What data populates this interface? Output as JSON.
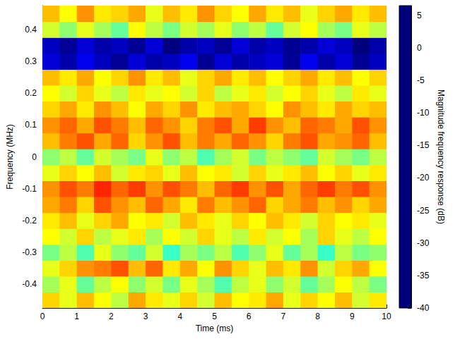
{
  "chart_data": {
    "type": "heatmap",
    "xlabel": "Time (ms)",
    "ylabel": "Frequency (MHz)",
    "colorbar_label": "Magnitude frequency response (dB)",
    "xlim": [
      0,
      10
    ],
    "xticks": [
      0,
      1,
      2,
      3,
      4,
      5,
      6,
      7,
      8,
      9,
      10
    ],
    "ylim": [
      -0.475,
      0.475
    ],
    "yticks": [
      -0.4,
      -0.3,
      -0.2,
      -0.1,
      0,
      0.1,
      0.2,
      0.3,
      0.4
    ],
    "clim": [
      -40,
      6.5
    ],
    "cticks": [
      -40,
      -35,
      -30,
      -25,
      -20,
      -15,
      -10,
      -5,
      0,
      5
    ],
    "x": [
      0.25,
      0.75,
      1.25,
      1.75,
      2.25,
      2.75,
      3.25,
      3.75,
      4.25,
      4.75,
      5.25,
      5.75,
      6.25,
      6.75,
      7.25,
      7.75,
      8.25,
      8.75,
      9.25,
      9.75
    ],
    "y": [
      -0.45,
      -0.4,
      -0.35,
      -0.3,
      -0.25,
      -0.2,
      -0.15,
      -0.1,
      -0.05,
      0,
      0.05,
      0.1,
      0.15,
      0.2,
      0.25,
      0.3,
      0.35,
      0.4,
      0.45
    ],
    "values": [
      [
        -9,
        -12,
        -8,
        -11,
        -14,
        -7,
        -10,
        -12,
        -9,
        -13,
        -8,
        -11,
        -10,
        -7,
        -12,
        -9,
        -11,
        -8,
        -13,
        -10
      ],
      [
        -15,
        -12,
        -18,
        -14,
        -11,
        -16,
        -13,
        -17,
        -12,
        -15,
        -19,
        -14,
        -12,
        -16,
        -13,
        -18,
        -15,
        -11,
        -14,
        -17
      ],
      [
        -12,
        -9,
        -6,
        -5,
        -3,
        -8,
        -4,
        -10,
        -7,
        -11,
        -6,
        -9,
        -12,
        -8,
        -10,
        -6,
        -13,
        -9,
        -7,
        -11
      ],
      [
        -17,
        -14,
        -19,
        -12,
        -16,
        -18,
        -13,
        -20,
        -15,
        -17,
        -14,
        -19,
        -16,
        -12,
        -18,
        -15,
        -20,
        -14,
        -17,
        -16
      ],
      [
        -11,
        -13,
        -9,
        -14,
        -12,
        -10,
        -15,
        -11,
        -13,
        -9,
        -12,
        -14,
        -10,
        -13,
        -11,
        -15,
        -9,
        -12,
        -14,
        -11
      ],
      [
        -10,
        -8,
        -12,
        -9,
        -7,
        -11,
        -10,
        -13,
        -8,
        -10,
        -12,
        -9,
        -11,
        -8,
        -10,
        -13,
        -9,
        -11,
        -10,
        -12
      ],
      [
        -7,
        -5,
        -9,
        -3,
        -6,
        -8,
        -4,
        -7,
        -10,
        -5,
        -8,
        -6,
        -4,
        -9,
        -7,
        -5,
        -8,
        -6,
        -9,
        -7
      ],
      [
        -6,
        -3,
        -5,
        -1,
        -4,
        -2,
        -6,
        -3,
        -5,
        -8,
        -4,
        -2,
        -6,
        -3,
        -7,
        -4,
        -2,
        -5,
        -3,
        -6
      ],
      [
        -12,
        -9,
        -11,
        -8,
        -13,
        -10,
        -9,
        -12,
        -8,
        -11,
        -10,
        -13,
        -9,
        -12,
        -10,
        -8,
        -11,
        -9,
        -12,
        -10
      ],
      [
        -16,
        -14,
        -18,
        -13,
        -15,
        -17,
        -12,
        -16,
        -14,
        -19,
        -15,
        -13,
        -17,
        -14,
        -16,
        -18,
        -13,
        -15,
        -17,
        -14
      ],
      [
        -8,
        -5,
        -3,
        -7,
        -4,
        -9,
        -6,
        -3,
        -8,
        -5,
        -7,
        -4,
        -6,
        -9,
        -5,
        -3,
        -7,
        -6,
        -4,
        -8
      ],
      [
        -6,
        -4,
        -7,
        -3,
        -5,
        -8,
        -4,
        -6,
        -9,
        -5,
        -3,
        -7,
        -2,
        -6,
        -8,
        -4,
        -5,
        -7,
        -3,
        -6
      ],
      [
        -9,
        -7,
        -10,
        -6,
        -8,
        -11,
        -7,
        -9,
        -6,
        -10,
        -8,
        -7,
        -9,
        -11,
        -6,
        -8,
        -10,
        -7,
        -9,
        -8
      ],
      [
        -11,
        -13,
        -9,
        -12,
        -14,
        -10,
        -12,
        -11,
        -13,
        -9,
        -14,
        -12,
        -10,
        -13,
        -11,
        -9,
        -12,
        -14,
        -10,
        -12
      ],
      [
        -8,
        -10,
        -7,
        -11,
        -9,
        -6,
        -10,
        -8,
        -12,
        -9,
        -7,
        -10,
        -8,
        -11,
        -9,
        -7,
        -10,
        -8,
        -11,
        -9
      ],
      [
        -36,
        -38,
        -35,
        -37,
        -39,
        -36,
        -38,
        -37,
        -35,
        -39,
        -36,
        -38,
        -37,
        -36,
        -39,
        -35,
        -38,
        -36,
        -39,
        -37
      ],
      [
        -37,
        -39,
        -36,
        -38,
        -37,
        -39,
        -36,
        -40,
        -38,
        -37,
        -39,
        -36,
        -38,
        -37,
        -39,
        -38,
        -36,
        -37,
        -40,
        -38
      ],
      [
        -13,
        -16,
        -12,
        -15,
        -18,
        -11,
        -14,
        -17,
        -13,
        -15,
        -12,
        -16,
        -14,
        -18,
        -13,
        -11,
        -15,
        -17,
        -12,
        -14
      ],
      [
        -8,
        -11,
        -6,
        -10,
        -9,
        -7,
        -12,
        -8,
        -10,
        -6,
        -9,
        -11,
        -7,
        -10,
        -8,
        -12,
        -9,
        -7,
        -10,
        -8
      ]
    ]
  }
}
